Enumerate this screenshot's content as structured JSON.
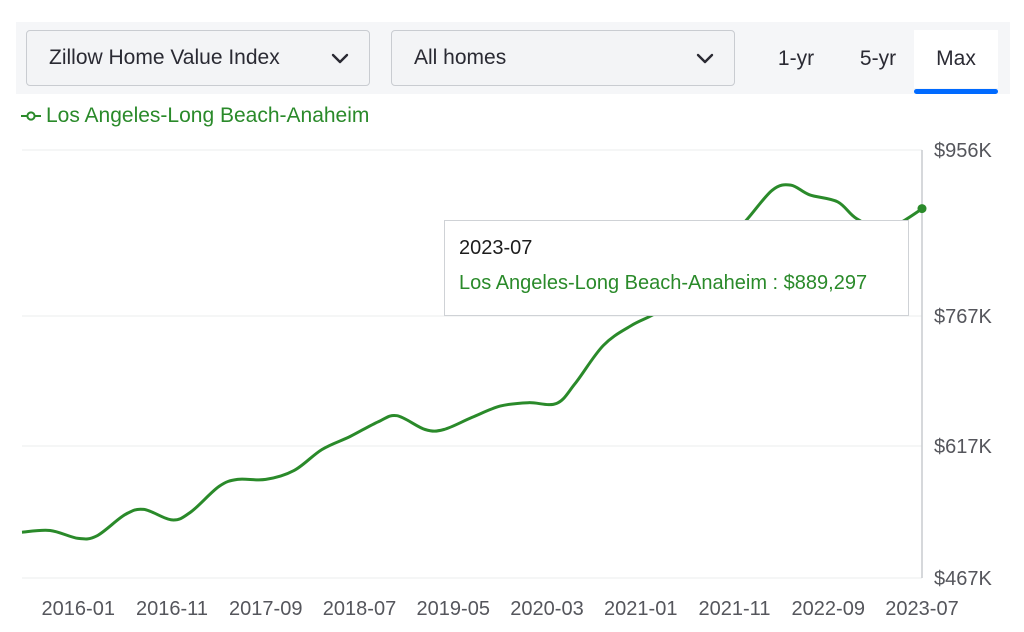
{
  "toolbar": {
    "metric_label": "Zillow Home Value Index",
    "type_label": "All homes",
    "ranges": [
      "1-yr",
      "5-yr",
      "Max"
    ],
    "active_range": "Max",
    "accent_color": "#006aff"
  },
  "legend": {
    "series_name": "Los Angeles-Long Beach-Anaheim",
    "color": "#2a8a2a"
  },
  "tooltip": {
    "date": "2023-07",
    "series": "Los Angeles-Long Beach-Anaheim",
    "separator": " : ",
    "value": "$889,297"
  },
  "chart_data": {
    "type": "line",
    "title": "",
    "xlabel": "",
    "ylabel": "",
    "x_tick_labels": [
      "2016-01",
      "2016-11",
      "2017-09",
      "2018-07",
      "2019-05",
      "2020-03",
      "2021-01",
      "2021-11",
      "2022-09",
      "2023-07"
    ],
    "y_tick_labels": [
      "$956K",
      "$767K",
      "$617K",
      "$467K"
    ],
    "y_ticks": [
      956,
      767,
      617,
      467
    ],
    "ylim": [
      467,
      956
    ],
    "y_unit": "thousand USD",
    "grid": "horizontal",
    "axis_side": "right",
    "series": [
      {
        "name": "Los Angeles-Long Beach-Anaheim",
        "color": "#2a8a2a",
        "x": [
          "2015-07",
          "2015-10",
          "2016-01",
          "2016-03",
          "2016-06",
          "2016-08",
          "2016-11",
          "2017-01",
          "2017-04",
          "2017-06",
          "2017-09",
          "2017-12",
          "2018-03",
          "2018-06",
          "2018-09",
          "2018-11",
          "2019-02",
          "2019-04",
          "2019-07",
          "2019-10",
          "2020-01",
          "2020-04",
          "2020-06",
          "2020-09",
          "2020-12",
          "2021-03",
          "2021-06",
          "2021-09",
          "2021-12",
          "2022-03",
          "2022-05",
          "2022-07",
          "2022-10",
          "2022-12",
          "2023-03",
          "2023-05",
          "2023-07"
        ],
        "values": [
          519,
          521,
          512,
          515,
          539,
          545,
          533,
          542,
          571,
          579,
          579,
          589,
          613,
          628,
          645,
          652,
          636,
          636,
          650,
          663,
          667,
          666,
          689,
          733,
          756,
          773,
          804,
          843,
          873,
          910,
          916,
          905,
          897,
          878,
          864,
          875,
          889
        ]
      }
    ],
    "highlight": {
      "x": "2023-07",
      "value": 889.297
    }
  }
}
